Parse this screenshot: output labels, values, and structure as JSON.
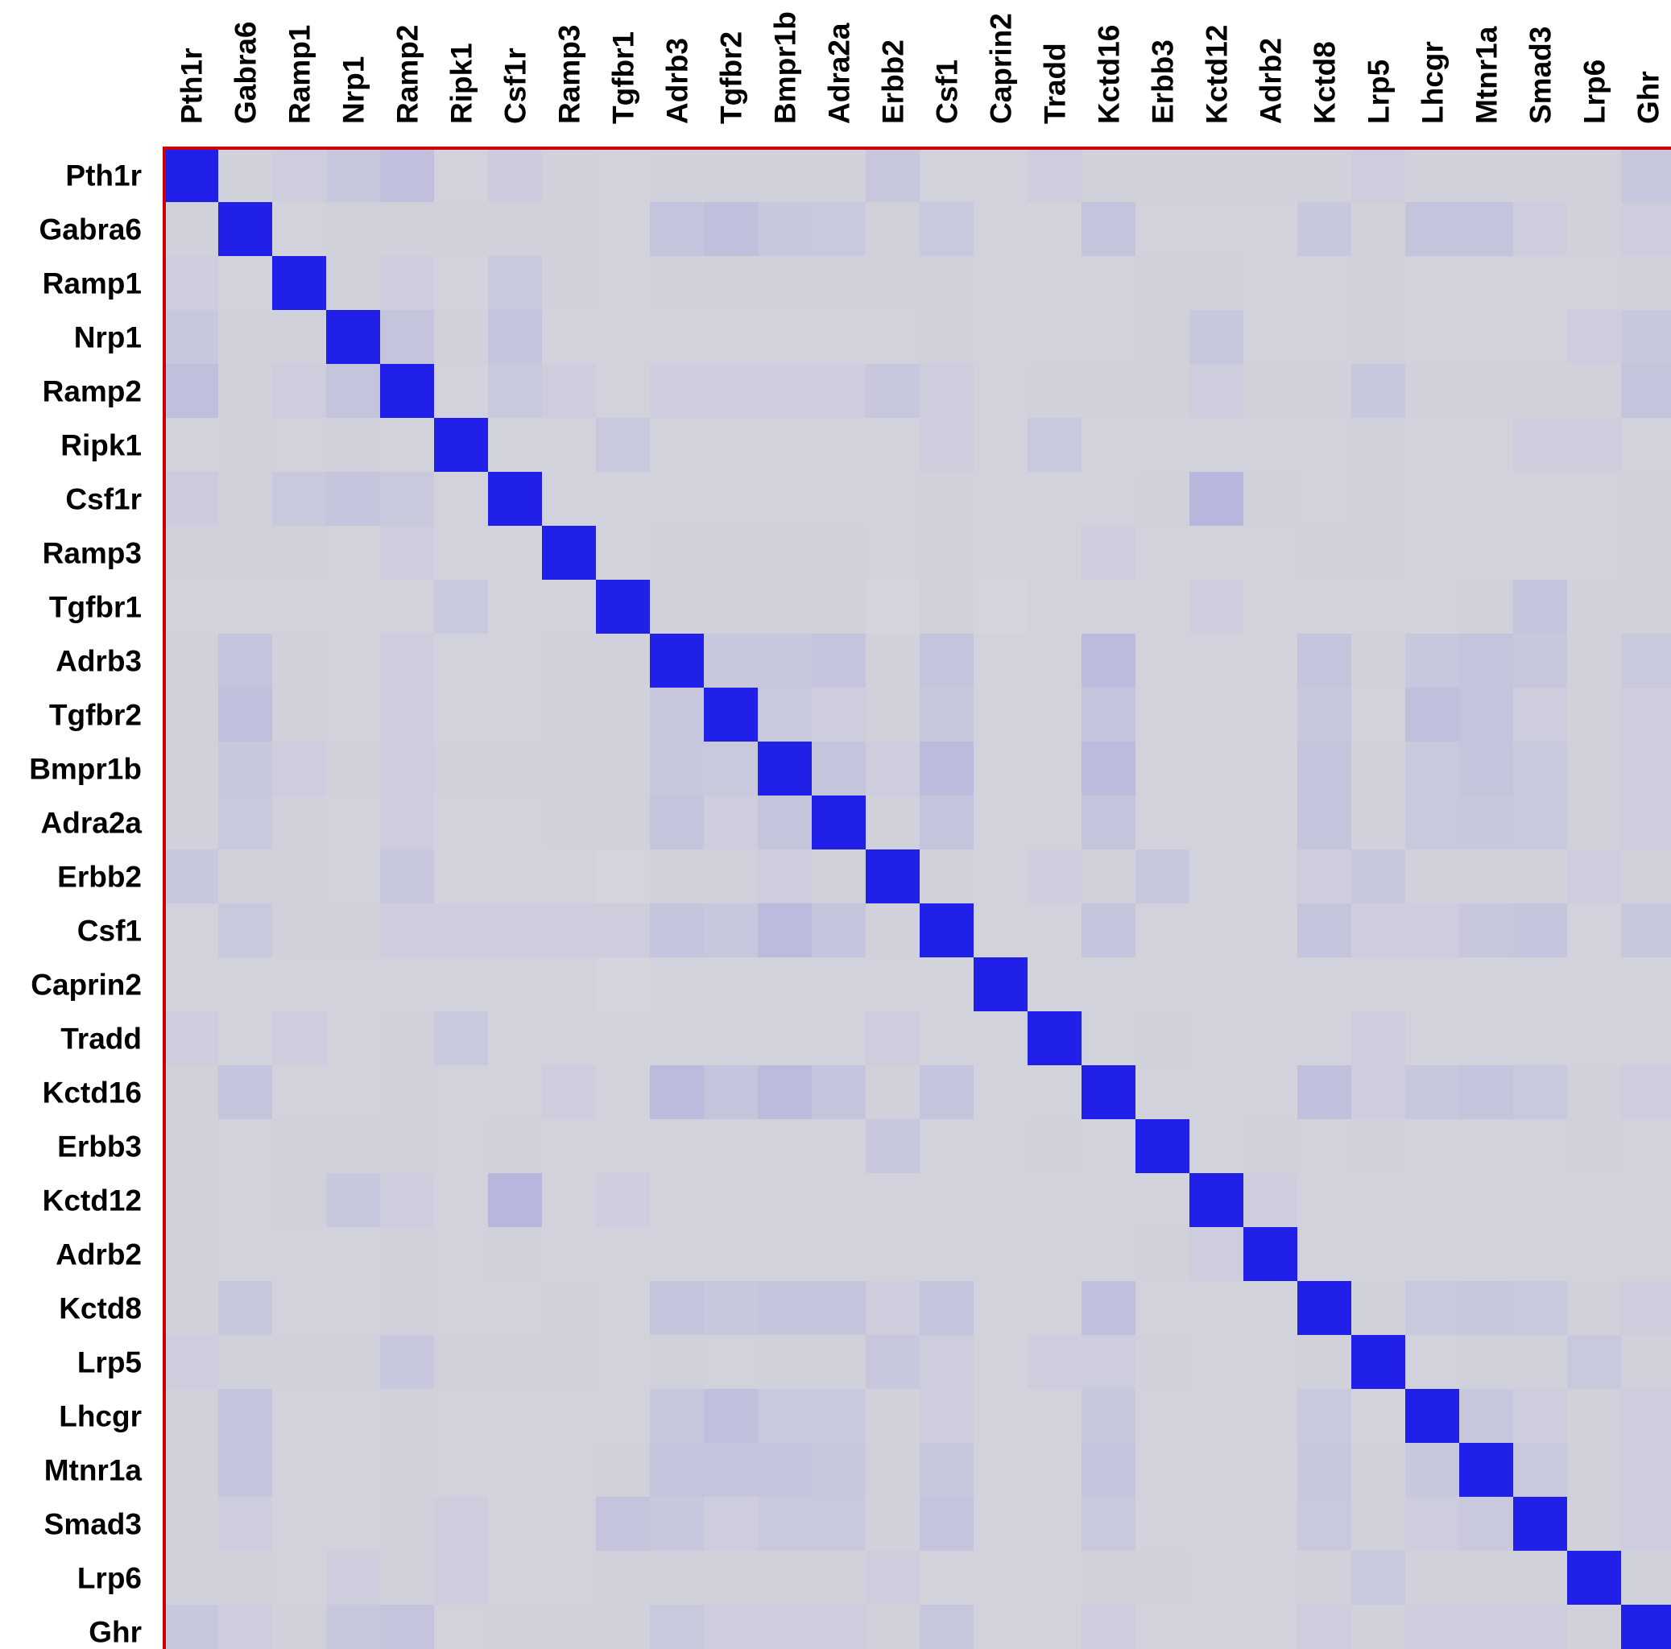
{
  "chart_data": {
    "type": "heatmap",
    "rows": [
      "Pth1r",
      "Gabra6",
      "Ramp1",
      "Nrp1",
      "Ramp2",
      "Ripk1",
      "Csf1r",
      "Ramp3",
      "Tgfbr1",
      "Adrb3",
      "Tgfbr2",
      "Bmpr1b",
      "Adra2a",
      "Erbb2",
      "Csf1",
      "Caprin2",
      "Tradd",
      "Kctd16",
      "Erbb3",
      "Kctd12",
      "Adrb2",
      "Kctd8",
      "Lrp5",
      "Lhcgr",
      "Mtnr1a",
      "Smad3",
      "Lrp6",
      "Ghr"
    ],
    "columns": [
      "Pth1r",
      "Gabra6",
      "Ramp1",
      "Nrp1",
      "Ramp2",
      "Ripk1",
      "Csf1r",
      "Ramp3",
      "Tgfbr1",
      "Adrb3",
      "Tgfbr2",
      "Bmpr1b",
      "Adra2a",
      "Erbb2",
      "Csf1",
      "Caprin2",
      "Tradd",
      "Kctd16",
      "Erbb3",
      "Kctd12",
      "Adrb2",
      "Kctd8",
      "Lrp5",
      "Lhcgr",
      "Mtnr1a",
      "Smad3",
      "Lrp6",
      "Ghr"
    ],
    "values": [
      [
        1.0,
        0.03,
        0.05,
        0.08,
        0.12,
        0.02,
        0.06,
        0.03,
        0.02,
        0.03,
        0.03,
        0.03,
        0.03,
        0.08,
        0.02,
        0.02,
        0.05,
        0.03,
        0.03,
        0.03,
        0.03,
        0.03,
        0.05,
        0.03,
        0.03,
        0.03,
        0.03,
        0.08
      ],
      [
        0.03,
        1.0,
        0.02,
        0.03,
        0.03,
        0.03,
        0.03,
        0.03,
        0.02,
        0.1,
        0.12,
        0.08,
        0.07,
        0.03,
        0.07,
        0.02,
        0.02,
        0.1,
        0.02,
        0.02,
        0.02,
        0.08,
        0.03,
        0.1,
        0.1,
        0.05,
        0.03,
        0.05
      ],
      [
        0.05,
        0.02,
        1.0,
        0.03,
        0.05,
        0.02,
        0.07,
        0.03,
        0.02,
        0.03,
        0.03,
        0.03,
        0.03,
        0.03,
        0.03,
        0.02,
        0.02,
        0.02,
        0.03,
        0.03,
        0.02,
        0.02,
        0.03,
        0.02,
        0.02,
        0.02,
        0.02,
        0.03
      ],
      [
        0.08,
        0.03,
        0.03,
        1.0,
        0.1,
        0.03,
        0.1,
        0.02,
        0.02,
        0.02,
        0.02,
        0.02,
        0.02,
        0.02,
        0.03,
        0.02,
        0.02,
        0.02,
        0.03,
        0.08,
        0.02,
        0.02,
        0.03,
        0.02,
        0.02,
        0.02,
        0.05,
        0.08
      ],
      [
        0.12,
        0.03,
        0.05,
        0.1,
        1.0,
        0.02,
        0.07,
        0.05,
        0.02,
        0.05,
        0.05,
        0.05,
        0.05,
        0.08,
        0.05,
        0.02,
        0.03,
        0.03,
        0.03,
        0.05,
        0.03,
        0.03,
        0.08,
        0.03,
        0.03,
        0.03,
        0.03,
        0.1
      ],
      [
        0.02,
        0.03,
        0.02,
        0.03,
        0.02,
        1.0,
        0.02,
        0.02,
        0.07,
        0.02,
        0.02,
        0.02,
        0.02,
        0.02,
        0.05,
        0.02,
        0.07,
        0.02,
        0.02,
        0.02,
        0.02,
        0.02,
        0.03,
        0.02,
        0.02,
        0.05,
        0.05,
        0.02
      ],
      [
        0.06,
        0.03,
        0.07,
        0.1,
        0.07,
        0.02,
        1.0,
        0.02,
        0.02,
        0.02,
        0.02,
        0.02,
        0.02,
        0.02,
        0.03,
        0.02,
        0.02,
        0.02,
        0.03,
        0.17,
        0.03,
        0.02,
        0.03,
        0.02,
        0.02,
        0.02,
        0.02,
        0.03
      ],
      [
        0.03,
        0.03,
        0.03,
        0.02,
        0.05,
        0.02,
        0.02,
        1.0,
        0.02,
        0.03,
        0.03,
        0.03,
        0.03,
        0.02,
        0.03,
        0.02,
        0.02,
        0.05,
        0.02,
        0.02,
        0.02,
        0.03,
        0.03,
        0.02,
        0.02,
        0.02,
        0.02,
        0.03
      ],
      [
        0.02,
        0.02,
        0.02,
        0.02,
        0.02,
        0.07,
        0.02,
        0.02,
        1.0,
        0.03,
        0.03,
        0.03,
        0.03,
        0.01,
        0.03,
        0.01,
        0.02,
        0.02,
        0.02,
        0.05,
        0.02,
        0.02,
        0.02,
        0.02,
        0.03,
        0.1,
        0.03,
        0.03
      ],
      [
        0.03,
        0.1,
        0.03,
        0.02,
        0.05,
        0.02,
        0.02,
        0.03,
        0.03,
        1.0,
        0.08,
        0.08,
        0.1,
        0.03,
        0.1,
        0.02,
        0.02,
        0.15,
        0.02,
        0.02,
        0.02,
        0.1,
        0.03,
        0.08,
        0.1,
        0.08,
        0.03,
        0.07
      ],
      [
        0.03,
        0.12,
        0.03,
        0.02,
        0.05,
        0.02,
        0.02,
        0.03,
        0.03,
        0.08,
        1.0,
        0.07,
        0.05,
        0.03,
        0.08,
        0.02,
        0.02,
        0.1,
        0.02,
        0.02,
        0.02,
        0.08,
        0.02,
        0.12,
        0.1,
        0.05,
        0.03,
        0.05
      ],
      [
        0.03,
        0.08,
        0.05,
        0.03,
        0.05,
        0.03,
        0.03,
        0.03,
        0.03,
        0.08,
        0.07,
        1.0,
        0.1,
        0.05,
        0.15,
        0.02,
        0.02,
        0.15,
        0.02,
        0.02,
        0.02,
        0.1,
        0.03,
        0.07,
        0.1,
        0.07,
        0.03,
        0.05
      ],
      [
        0.03,
        0.07,
        0.03,
        0.02,
        0.05,
        0.02,
        0.02,
        0.03,
        0.03,
        0.1,
        0.05,
        0.1,
        1.0,
        0.03,
        0.1,
        0.02,
        0.02,
        0.1,
        0.02,
        0.02,
        0.02,
        0.1,
        0.03,
        0.07,
        0.08,
        0.07,
        0.03,
        0.05
      ],
      [
        0.08,
        0.03,
        0.03,
        0.02,
        0.08,
        0.02,
        0.02,
        0.02,
        0.01,
        0.03,
        0.03,
        0.05,
        0.03,
        1.0,
        0.03,
        0.02,
        0.05,
        0.03,
        0.08,
        0.02,
        0.02,
        0.05,
        0.08,
        0.03,
        0.03,
        0.03,
        0.05,
        0.03
      ],
      [
        0.02,
        0.07,
        0.03,
        0.03,
        0.05,
        0.05,
        0.05,
        0.05,
        0.05,
        0.1,
        0.08,
        0.15,
        0.1,
        0.03,
        1.0,
        0.02,
        0.02,
        0.1,
        0.02,
        0.02,
        0.02,
        0.1,
        0.05,
        0.05,
        0.08,
        0.1,
        0.02,
        0.08
      ],
      [
        0.02,
        0.02,
        0.02,
        0.02,
        0.02,
        0.02,
        0.02,
        0.02,
        0.01,
        0.02,
        0.02,
        0.02,
        0.02,
        0.02,
        0.02,
        1.0,
        0.02,
        0.02,
        0.02,
        0.02,
        0.02,
        0.02,
        0.02,
        0.02,
        0.02,
        0.02,
        0.02,
        0.02
      ],
      [
        0.05,
        0.02,
        0.05,
        0.02,
        0.03,
        0.07,
        0.02,
        0.02,
        0.02,
        0.02,
        0.02,
        0.02,
        0.02,
        0.05,
        0.02,
        0.02,
        1.0,
        0.02,
        0.03,
        0.02,
        0.02,
        0.02,
        0.05,
        0.02,
        0.02,
        0.02,
        0.02,
        0.02
      ],
      [
        0.03,
        0.1,
        0.02,
        0.02,
        0.03,
        0.02,
        0.02,
        0.05,
        0.02,
        0.15,
        0.1,
        0.15,
        0.1,
        0.03,
        0.1,
        0.02,
        0.02,
        1.0,
        0.02,
        0.02,
        0.02,
        0.12,
        0.05,
        0.08,
        0.1,
        0.07,
        0.03,
        0.05
      ],
      [
        0.03,
        0.02,
        0.03,
        0.03,
        0.03,
        0.02,
        0.03,
        0.02,
        0.02,
        0.02,
        0.02,
        0.02,
        0.02,
        0.08,
        0.02,
        0.02,
        0.03,
        0.02,
        1.0,
        0.02,
        0.03,
        0.02,
        0.03,
        0.02,
        0.02,
        0.02,
        0.03,
        0.02
      ],
      [
        0.03,
        0.02,
        0.03,
        0.08,
        0.05,
        0.02,
        0.17,
        0.02,
        0.05,
        0.02,
        0.02,
        0.02,
        0.02,
        0.02,
        0.02,
        0.02,
        0.02,
        0.02,
        0.02,
        1.0,
        0.05,
        0.02,
        0.02,
        0.02,
        0.02,
        0.02,
        0.02,
        0.02
      ],
      [
        0.03,
        0.02,
        0.02,
        0.02,
        0.03,
        0.02,
        0.03,
        0.02,
        0.02,
        0.02,
        0.02,
        0.02,
        0.02,
        0.02,
        0.02,
        0.02,
        0.02,
        0.02,
        0.03,
        0.05,
        1.0,
        0.02,
        0.02,
        0.02,
        0.02,
        0.02,
        0.02,
        0.02
      ],
      [
        0.03,
        0.08,
        0.02,
        0.02,
        0.03,
        0.02,
        0.02,
        0.03,
        0.02,
        0.1,
        0.08,
        0.1,
        0.1,
        0.05,
        0.1,
        0.02,
        0.02,
        0.12,
        0.02,
        0.02,
        0.02,
        1.0,
        0.03,
        0.07,
        0.08,
        0.07,
        0.03,
        0.05
      ],
      [
        0.05,
        0.03,
        0.03,
        0.03,
        0.08,
        0.03,
        0.03,
        0.03,
        0.02,
        0.03,
        0.02,
        0.03,
        0.03,
        0.08,
        0.05,
        0.02,
        0.05,
        0.05,
        0.03,
        0.02,
        0.02,
        0.03,
        1.0,
        0.02,
        0.03,
        0.03,
        0.07,
        0.03
      ],
      [
        0.03,
        0.1,
        0.02,
        0.02,
        0.03,
        0.02,
        0.02,
        0.02,
        0.02,
        0.08,
        0.12,
        0.07,
        0.07,
        0.03,
        0.05,
        0.02,
        0.02,
        0.08,
        0.02,
        0.02,
        0.02,
        0.07,
        0.02,
        1.0,
        0.08,
        0.05,
        0.03,
        0.05
      ],
      [
        0.03,
        0.1,
        0.02,
        0.02,
        0.03,
        0.02,
        0.02,
        0.02,
        0.03,
        0.1,
        0.1,
        0.1,
        0.08,
        0.03,
        0.08,
        0.02,
        0.02,
        0.1,
        0.02,
        0.02,
        0.02,
        0.08,
        0.03,
        0.08,
        1.0,
        0.07,
        0.03,
        0.05
      ],
      [
        0.03,
        0.05,
        0.02,
        0.02,
        0.03,
        0.05,
        0.02,
        0.02,
        0.1,
        0.08,
        0.05,
        0.07,
        0.07,
        0.03,
        0.1,
        0.02,
        0.02,
        0.07,
        0.02,
        0.02,
        0.02,
        0.07,
        0.03,
        0.05,
        0.07,
        1.0,
        0.03,
        0.05
      ],
      [
        0.03,
        0.03,
        0.02,
        0.05,
        0.03,
        0.05,
        0.02,
        0.02,
        0.03,
        0.03,
        0.03,
        0.03,
        0.03,
        0.05,
        0.02,
        0.02,
        0.02,
        0.03,
        0.03,
        0.02,
        0.02,
        0.03,
        0.07,
        0.03,
        0.03,
        0.03,
        1.0,
        0.03
      ],
      [
        0.08,
        0.05,
        0.03,
        0.08,
        0.1,
        0.02,
        0.03,
        0.03,
        0.03,
        0.07,
        0.05,
        0.05,
        0.05,
        0.03,
        0.08,
        0.02,
        0.02,
        0.05,
        0.02,
        0.02,
        0.02,
        0.05,
        0.03,
        0.05,
        0.05,
        0.05,
        0.03,
        1.0
      ]
    ],
    "colors": {
      "low": "#d6d6dc",
      "high": "#2020e8",
      "border": "#cc0000",
      "text": "#000000"
    },
    "grid": false,
    "legend": "none"
  }
}
